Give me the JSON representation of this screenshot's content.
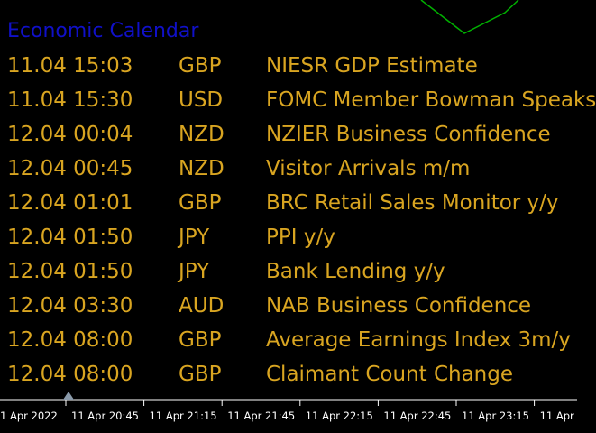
{
  "title": "Economic Calendar",
  "rows": [
    [
      "11.04 15:03",
      "GBP",
      "NIESR GDP Estimate"
    ],
    [
      "11.04 15:30",
      "USD",
      "FOMC Member Bowman Speaks"
    ],
    [
      "12.04 00:04",
      "NZD",
      "NZIER Business Confidence"
    ],
    [
      "12.04 00:45",
      "NZD",
      "Visitor Arrivals m/m"
    ],
    [
      "12.04 01:01",
      "GBP",
      "BRC Retail Sales Monitor y/y"
    ],
    [
      "12.04 01:50",
      "JPY",
      "PPI y/y"
    ],
    [
      "12.04 01:50",
      "JPY",
      "Bank Lending y/y"
    ],
    [
      "12.04 03:30",
      "AUD",
      "NAB Business Confidence"
    ],
    [
      "12.04 08:00",
      "GBP",
      "Average Earnings Index 3m/y"
    ],
    [
      "12.04 08:00",
      "GBP",
      "Claimant Count Change"
    ]
  ],
  "time_axis": [
    "1 Apr 2022",
    "11 Apr 20:45",
    "11 Apr 21:15",
    "11 Apr 21:45",
    "11 Apr 22:15",
    "11 Apr 22:45",
    "11 Apr 23:15",
    "11 Apr"
  ]
}
